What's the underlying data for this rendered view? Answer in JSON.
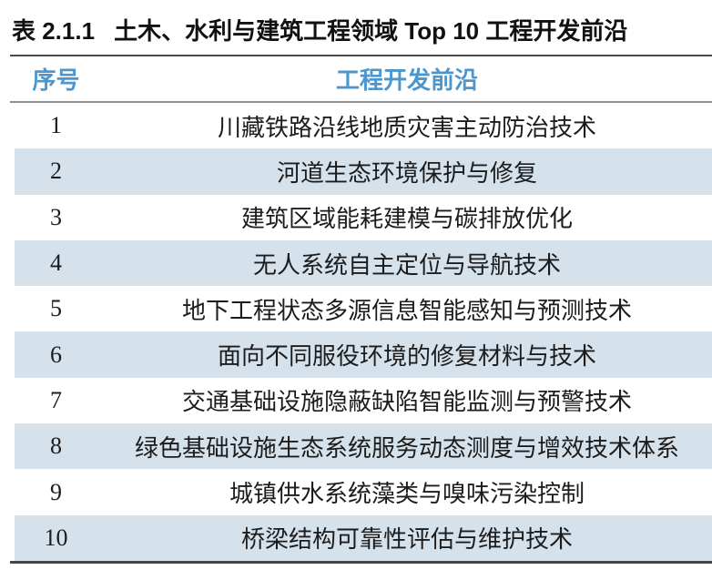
{
  "caption": {
    "label": "表 2.1.1",
    "title": "土木、水利与建筑工程领域 Top 10 工程开发前沿"
  },
  "table": {
    "columns": [
      "序号",
      "工程开发前沿"
    ],
    "rows": [
      {
        "rank": "1",
        "front": "川藏铁路沿线地质灾害主动防治技术"
      },
      {
        "rank": "2",
        "front": "河道生态环境保护与修复"
      },
      {
        "rank": "3",
        "front": "建筑区域能耗建模与碳排放优化"
      },
      {
        "rank": "4",
        "front": "无人系统自主定位与导航技术"
      },
      {
        "rank": "5",
        "front": "地下工程状态多源信息智能感知与预测技术"
      },
      {
        "rank": "6",
        "front": "面向不同服役环境的修复材料与技术"
      },
      {
        "rank": "7",
        "front": "交通基础设施隐蔽缺陷智能监测与预警技术"
      },
      {
        "rank": "8",
        "front": "绿色基础设施生态系统服务动态测度与增效技术体系"
      },
      {
        "rank": "9",
        "front": "城镇供水系统藻类与嗅味污染控制"
      },
      {
        "rank": "10",
        "front": "桥梁结构可靠性评估与维护技术"
      }
    ]
  },
  "colors": {
    "title_text": "#111111",
    "header_text": "#4b96cd",
    "body_text": "#1c1c1c",
    "stripe": "#d6e2eb",
    "rule_top": "#4a4a4a",
    "rule_header": "#8f8f8f",
    "rule_bottom": "#454545"
  }
}
